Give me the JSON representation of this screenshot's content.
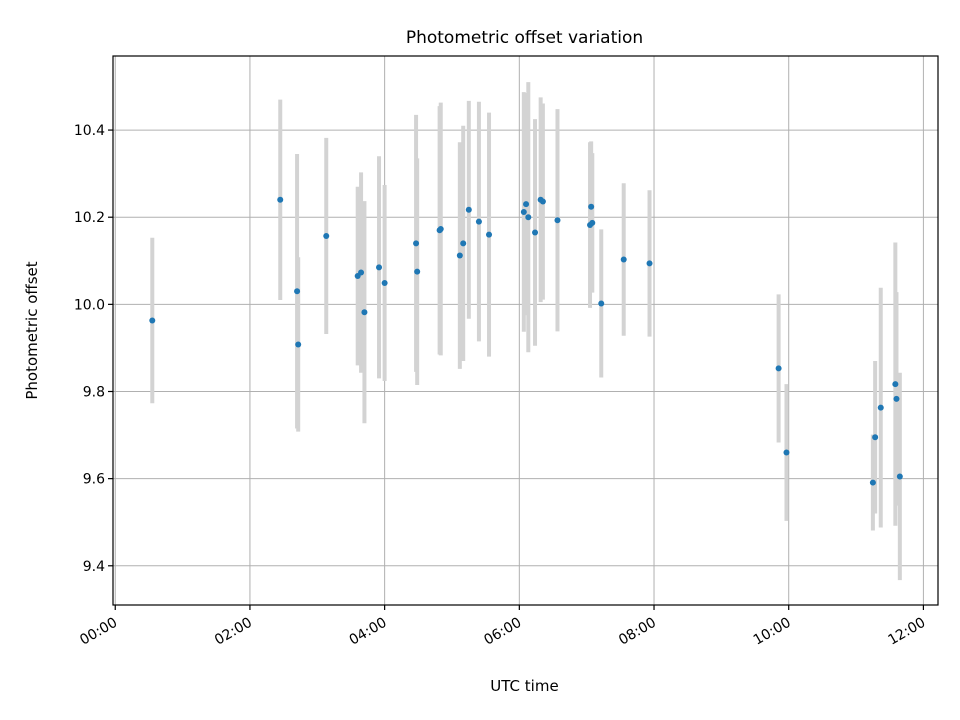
{
  "chart_data": {
    "type": "scatter",
    "title": "Photometric offset variation",
    "xlabel": "UTC time",
    "ylabel": "Photometric offset",
    "xlim": [
      "-00:02",
      "12:13"
    ],
    "ylim": [
      9.31,
      10.57
    ],
    "x_ticks": [
      "00:00",
      "02:00",
      "04:00",
      "06:00",
      "08:00",
      "10:00",
      "12:00"
    ],
    "y_ticks": [
      "9.4",
      "9.6",
      "9.8",
      "10.0",
      "10.2",
      "10.4"
    ],
    "grid": true,
    "legend": "none",
    "colors": {
      "points": "#1f77b4",
      "errorbars": "#d3d3d3",
      "grid": "#b0b0b0"
    },
    "points": [
      {
        "x": "00:33",
        "y": 9.963,
        "err": 0.19
      },
      {
        "x": "02:27",
        "y": 10.24,
        "err": 0.23
      },
      {
        "x": "02:42",
        "y": 10.03,
        "err": 0.315
      },
      {
        "x": "02:43",
        "y": 9.908,
        "err": 0.2
      },
      {
        "x": "03:08",
        "y": 10.157,
        "err": 0.225
      },
      {
        "x": "03:36",
        "y": 10.065,
        "err": 0.205
      },
      {
        "x": "03:39",
        "y": 10.073,
        "err": 0.23
      },
      {
        "x": "03:42",
        "y": 9.982,
        "err": 0.255
      },
      {
        "x": "03:55",
        "y": 10.085,
        "err": 0.255
      },
      {
        "x": "04:00",
        "y": 10.049,
        "err": 0.225
      },
      {
        "x": "04:28",
        "y": 10.14,
        "err": 0.295
      },
      {
        "x": "04:29",
        "y": 10.075,
        "err": 0.26
      },
      {
        "x": "04:49",
        "y": 10.17,
        "err": 0.285
      },
      {
        "x": "04:50",
        "y": 10.173,
        "err": 0.29
      },
      {
        "x": "05:07",
        "y": 10.112,
        "err": 0.26
      },
      {
        "x": "05:10",
        "y": 10.14,
        "err": 0.27
      },
      {
        "x": "05:15",
        "y": 10.217,
        "err": 0.25
      },
      {
        "x": "05:24",
        "y": 10.19,
        "err": 0.275
      },
      {
        "x": "05:33",
        "y": 10.16,
        "err": 0.28
      },
      {
        "x": "06:04",
        "y": 10.212,
        "err": 0.275
      },
      {
        "x": "06:06",
        "y": 10.23,
        "err": 0.255
      },
      {
        "x": "06:08",
        "y": 10.2,
        "err": 0.31
      },
      {
        "x": "06:14",
        "y": 10.165,
        "err": 0.26
      },
      {
        "x": "06:19",
        "y": 10.24,
        "err": 0.235
      },
      {
        "x": "06:21",
        "y": 10.236,
        "err": 0.225
      },
      {
        "x": "06:34",
        "y": 10.193,
        "err": 0.255
      },
      {
        "x": "07:03",
        "y": 10.182,
        "err": 0.19
      },
      {
        "x": "07:04",
        "y": 10.224,
        "err": 0.15
      },
      {
        "x": "07:05",
        "y": 10.187,
        "err": 0.16
      },
      {
        "x": "07:13",
        "y": 10.002,
        "err": 0.17
      },
      {
        "x": "07:33",
        "y": 10.103,
        "err": 0.175
      },
      {
        "x": "07:56",
        "y": 10.094,
        "err": 0.168
      },
      {
        "x": "09:51",
        "y": 9.853,
        "err": 0.17
      },
      {
        "x": "09:58",
        "y": 9.66,
        "err": 0.157
      },
      {
        "x": "11:15",
        "y": 9.591,
        "err": 0.11
      },
      {
        "x": "11:17",
        "y": 9.695,
        "err": 0.175
      },
      {
        "x": "11:22",
        "y": 9.763,
        "err": 0.275
      },
      {
        "x": "11:35",
        "y": 9.817,
        "err": 0.325
      },
      {
        "x": "11:36",
        "y": 9.783,
        "err": 0.245
      },
      {
        "x": "11:39",
        "y": 9.605,
        "err": 0.238
      }
    ]
  }
}
